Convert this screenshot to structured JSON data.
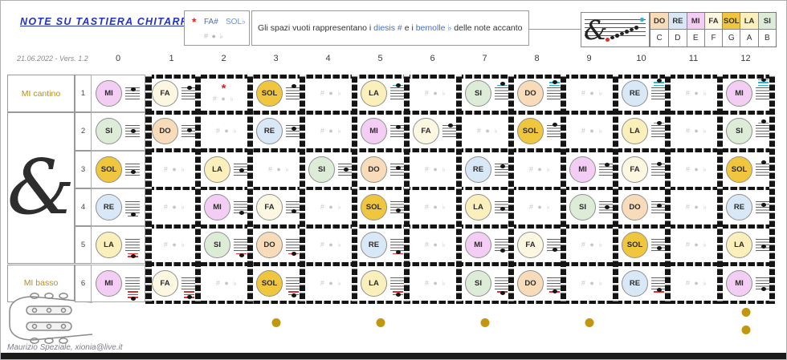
{
  "title": "NOTE SU TASTIERA CHITARRA",
  "version": "21.06.2022 - Vers. 1.2",
  "credit": "Maurizio Speziale, xionia@live.it",
  "icons": {
    "treble_clef": "&"
  },
  "legend": {
    "asterisk": "*",
    "sharp_example": "FA#",
    "flat_example": "SOL♭",
    "placeholder": "# ● ♭",
    "parts": [
      "Gli spazi vuoti rappresentano i ",
      "diesis #",
      " e i ",
      "bemolle ♭",
      " delle note accanto"
    ]
  },
  "note_table": {
    "solfege": [
      "DO",
      "RE",
      "MI",
      "FA",
      "SOL",
      "LA",
      "SI"
    ],
    "letters": [
      "C",
      "D",
      "E",
      "F",
      "G",
      "A",
      "B"
    ]
  },
  "note_colors": {
    "DO": "#f8dcba",
    "RE": "#d8e8f6",
    "MI": "#f3cdf3",
    "FA": "#fcf7e0",
    "SOL": "#f0c63e",
    "LA": "#fbf0bb",
    "SI": "#dcecd6"
  },
  "accents": {
    "cyan": "#2ab4cc",
    "red": "#e03030",
    "gold": "#c3960f",
    "blue": "#4472c4"
  },
  "fret_numbers": [
    "0",
    "1",
    "2",
    "3",
    "4",
    "5",
    "6",
    "7",
    "8",
    "9",
    "10",
    "11",
    "12"
  ],
  "left_panel": {
    "cantino": "MI cantino",
    "basso": "MI basso",
    "numbers": [
      "1",
      "2",
      "3",
      "4",
      "5",
      "6"
    ]
  },
  "strings": [
    {
      "number": "1",
      "open_written_midi": 76,
      "notes": [
        "MI",
        "FA",
        "*",
        "SOL",
        null,
        "LA",
        null,
        "SI",
        "DO",
        null,
        "RE",
        null,
        "MI"
      ]
    },
    {
      "number": "2",
      "open_written_midi": 71,
      "notes": [
        "SI",
        "DO",
        null,
        "RE",
        null,
        "MI",
        "FA",
        null,
        "SOL",
        null,
        "LA",
        null,
        "SI"
      ]
    },
    {
      "number": "3",
      "open_written_midi": 67,
      "notes": [
        "SOL",
        null,
        "LA",
        null,
        "SI",
        "DO",
        null,
        "RE",
        null,
        "MI",
        "FA",
        null,
        "SOL"
      ]
    },
    {
      "number": "4",
      "open_written_midi": 62,
      "notes": [
        "RE",
        null,
        "MI",
        "FA",
        null,
        "SOL",
        null,
        "LA",
        null,
        "SI",
        "DO",
        null,
        "RE"
      ]
    },
    {
      "number": "5",
      "open_written_midi": 57,
      "notes": [
        "LA",
        null,
        "SI",
        "DO",
        null,
        "RE",
        null,
        "MI",
        "FA",
        null,
        "SOL",
        null,
        "LA"
      ]
    },
    {
      "number": "6",
      "open_written_midi": 52,
      "notes": [
        "MI",
        "FA",
        null,
        "SOL",
        null,
        "LA",
        null,
        "SI",
        "DO",
        null,
        "RE",
        null,
        "MI"
      ]
    }
  ],
  "markers": {
    "single_frets": [
      3,
      5,
      7,
      9
    ],
    "double_fret": 12
  }
}
